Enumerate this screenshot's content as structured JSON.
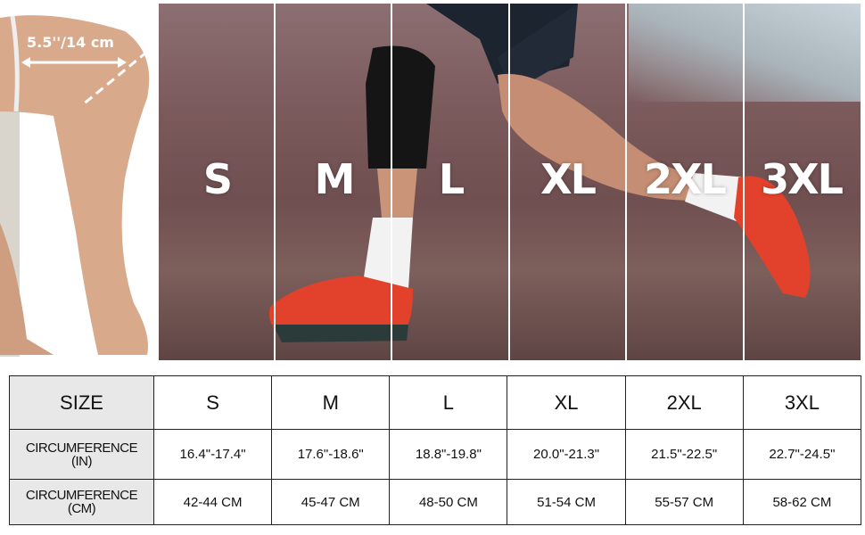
{
  "measurement": {
    "label": "5.5''/14 cm"
  },
  "photo_sizes": [
    "S",
    "M",
    "L",
    "XL",
    "2XL",
    "3XL"
  ],
  "table": {
    "header": {
      "label": "SIZE",
      "sizes": [
        "S",
        "M",
        "L",
        "XL",
        "2XL",
        "3XL"
      ]
    },
    "rows": [
      {
        "label_line1": "CIRCUMFERENCE",
        "label_line2": "(IN)",
        "values": [
          "16.4\"-17.4\"",
          "17.6\"-18.6\"",
          "18.8\"-19.8\"",
          "20.0\"-21.3\"",
          "21.5\"-22.5\"",
          "22.7\"-24.5\""
        ]
      },
      {
        "label_line1": "CIRCUMFERENCE",
        "label_line2": "(CM)",
        "values": [
          "42-44 CM",
          "45-47 CM",
          "48-50 CM",
          "51-54 CM",
          "55-57 CM",
          "58-62 CM"
        ]
      }
    ]
  }
}
